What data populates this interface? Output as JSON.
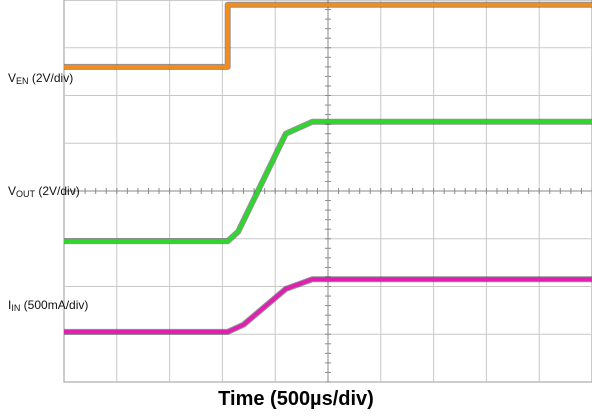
{
  "chart_data": {
    "type": "line",
    "title": "",
    "xlabel": "Time (500µs/div)",
    "grid": true,
    "x_divisions": 10,
    "y_divisions": 8,
    "xlim_div": [
      0,
      10
    ],
    "ylim_div": [
      -4,
      4
    ],
    "series": [
      {
        "label_main": "V",
        "label_sub": "EN",
        "label_scale": " (2V/div)",
        "color": "#f28c1c",
        "points": [
          [
            0,
            2.6
          ],
          [
            3.1,
            2.6
          ],
          [
            3.1,
            3.9
          ],
          [
            10,
            3.9
          ]
        ]
      },
      {
        "label_main": "V",
        "label_sub": "OUT",
        "label_scale": " (2V/div)",
        "color": "#2ed62e",
        "points": [
          [
            0,
            -1.05
          ],
          [
            3.1,
            -1.05
          ],
          [
            3.3,
            -0.85
          ],
          [
            4.2,
            1.2
          ],
          [
            4.7,
            1.45
          ],
          [
            10,
            1.45
          ]
        ]
      },
      {
        "label_main": "I",
        "label_sub": "IN",
        "label_scale": " (500mA/div)",
        "color": "#e020b0",
        "points": [
          [
            0,
            -2.95
          ],
          [
            3.1,
            -2.95
          ],
          [
            3.4,
            -2.8
          ],
          [
            4.2,
            -2.05
          ],
          [
            4.7,
            -1.85
          ],
          [
            10,
            -1.85
          ]
        ]
      }
    ]
  }
}
